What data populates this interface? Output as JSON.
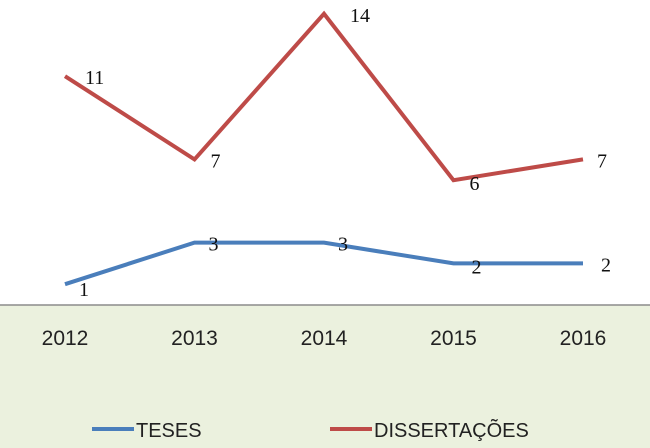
{
  "chart_data": {
    "type": "line",
    "categories": [
      "2012",
      "2013",
      "2014",
      "2015",
      "2016"
    ],
    "series": [
      {
        "name": "TESES",
        "values": [
          1,
          3,
          3,
          2,
          2
        ],
        "color": "#4a7ebb"
      },
      {
        "name": "DISSERTAÇÕES",
        "values": [
          11,
          7,
          14,
          6,
          7
        ],
        "color": "#be4b48"
      }
    ],
    "ylim": [
      0,
      15
    ],
    "grid": false,
    "legend_position": "bottom",
    "colors": {
      "plot_bg": "#ffffff",
      "axis_area_bg": "#ebf1de",
      "axis_line": "#8c8c8c"
    }
  }
}
